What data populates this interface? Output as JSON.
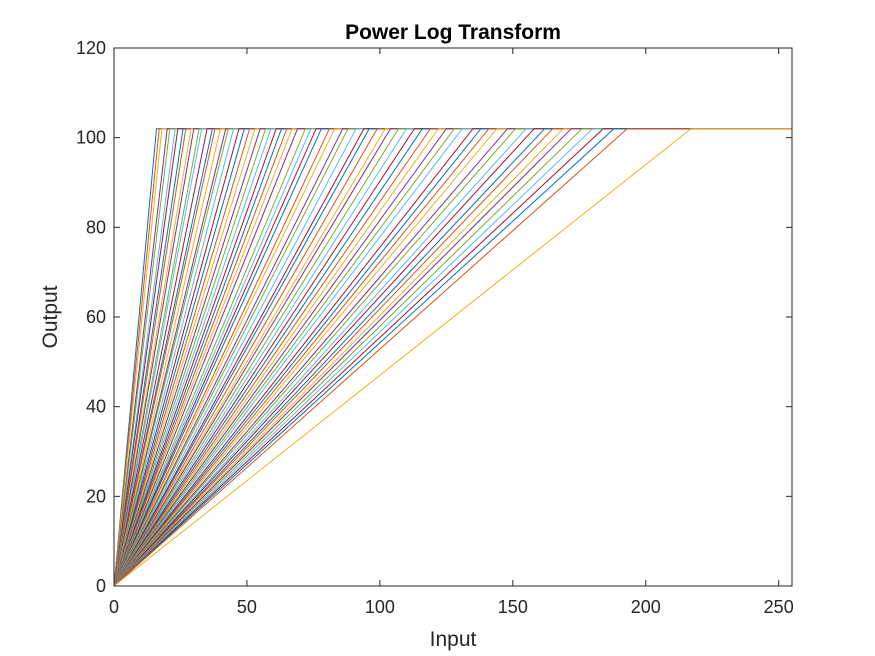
{
  "chart_data": {
    "type": "line",
    "title": "Power Log Transform",
    "xlabel": "Input",
    "ylabel": "Output",
    "xlim": [
      0,
      255
    ],
    "ylim": [
      0,
      120
    ],
    "xticks": [
      0,
      50,
      100,
      150,
      200,
      250
    ],
    "yticks": [
      0,
      20,
      40,
      60,
      80,
      100,
      120
    ],
    "grid": false,
    "legend": "none",
    "series_shape": "each series rises linearly from (0, 0) to the saturation level at a knee input, then stays flat to x = 255",
    "saturation_level": 102,
    "knee_range": [
      16,
      217
    ],
    "knee_inputs": [
      16,
      17,
      18,
      20,
      21,
      23,
      24,
      26,
      27,
      29,
      30,
      32,
      33,
      35,
      37,
      38,
      40,
      42,
      43,
      45,
      47,
      49,
      51,
      53,
      55,
      57,
      59,
      61,
      63,
      65,
      67,
      69,
      72,
      74,
      76,
      78,
      81,
      83,
      86,
      88,
      91,
      94,
      96,
      99,
      102,
      104,
      107,
      110,
      113,
      116,
      119,
      122,
      125,
      128,
      131,
      135,
      138,
      141,
      144,
      148,
      151,
      155,
      158,
      162,
      165,
      169,
      172,
      176,
      180,
      184,
      188,
      193,
      217
    ],
    "colors": [
      "#0072BD",
      "#D95319",
      "#EDB120",
      "#7E2F8E",
      "#77AC30",
      "#4DBEEE",
      "#A2142F"
    ]
  }
}
